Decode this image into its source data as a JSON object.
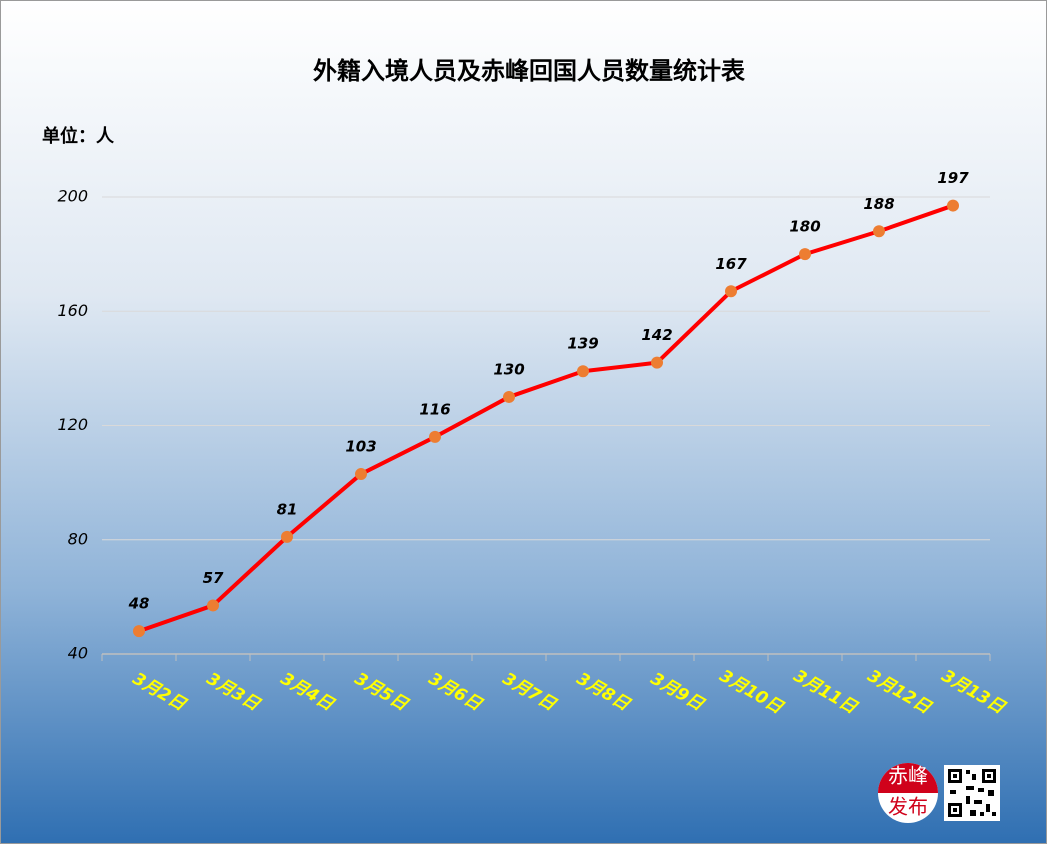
{
  "chart_data": {
    "type": "line",
    "title": "外籍入境人员及赤峰回国人员数量统计表",
    "ylabel": "单位：人",
    "categories": [
      "3月2日",
      "3月3日",
      "3月4日",
      "3月5日",
      "3月6日",
      "3月7日",
      "3月8日",
      "3月9日",
      "3月10日",
      "3月11日",
      "3月12日",
      "3月13日"
    ],
    "values": [
      48,
      57,
      81,
      103,
      116,
      130,
      139,
      142,
      167,
      180,
      188,
      197
    ],
    "color": "#ff0000",
    "marker_color": "#ed7d31",
    "ylim": [
      40,
      200
    ],
    "yticks": [
      40,
      80,
      120,
      160,
      200
    ],
    "grid": true
  },
  "logo": {
    "line1": "赤峰",
    "line2": "发布"
  }
}
